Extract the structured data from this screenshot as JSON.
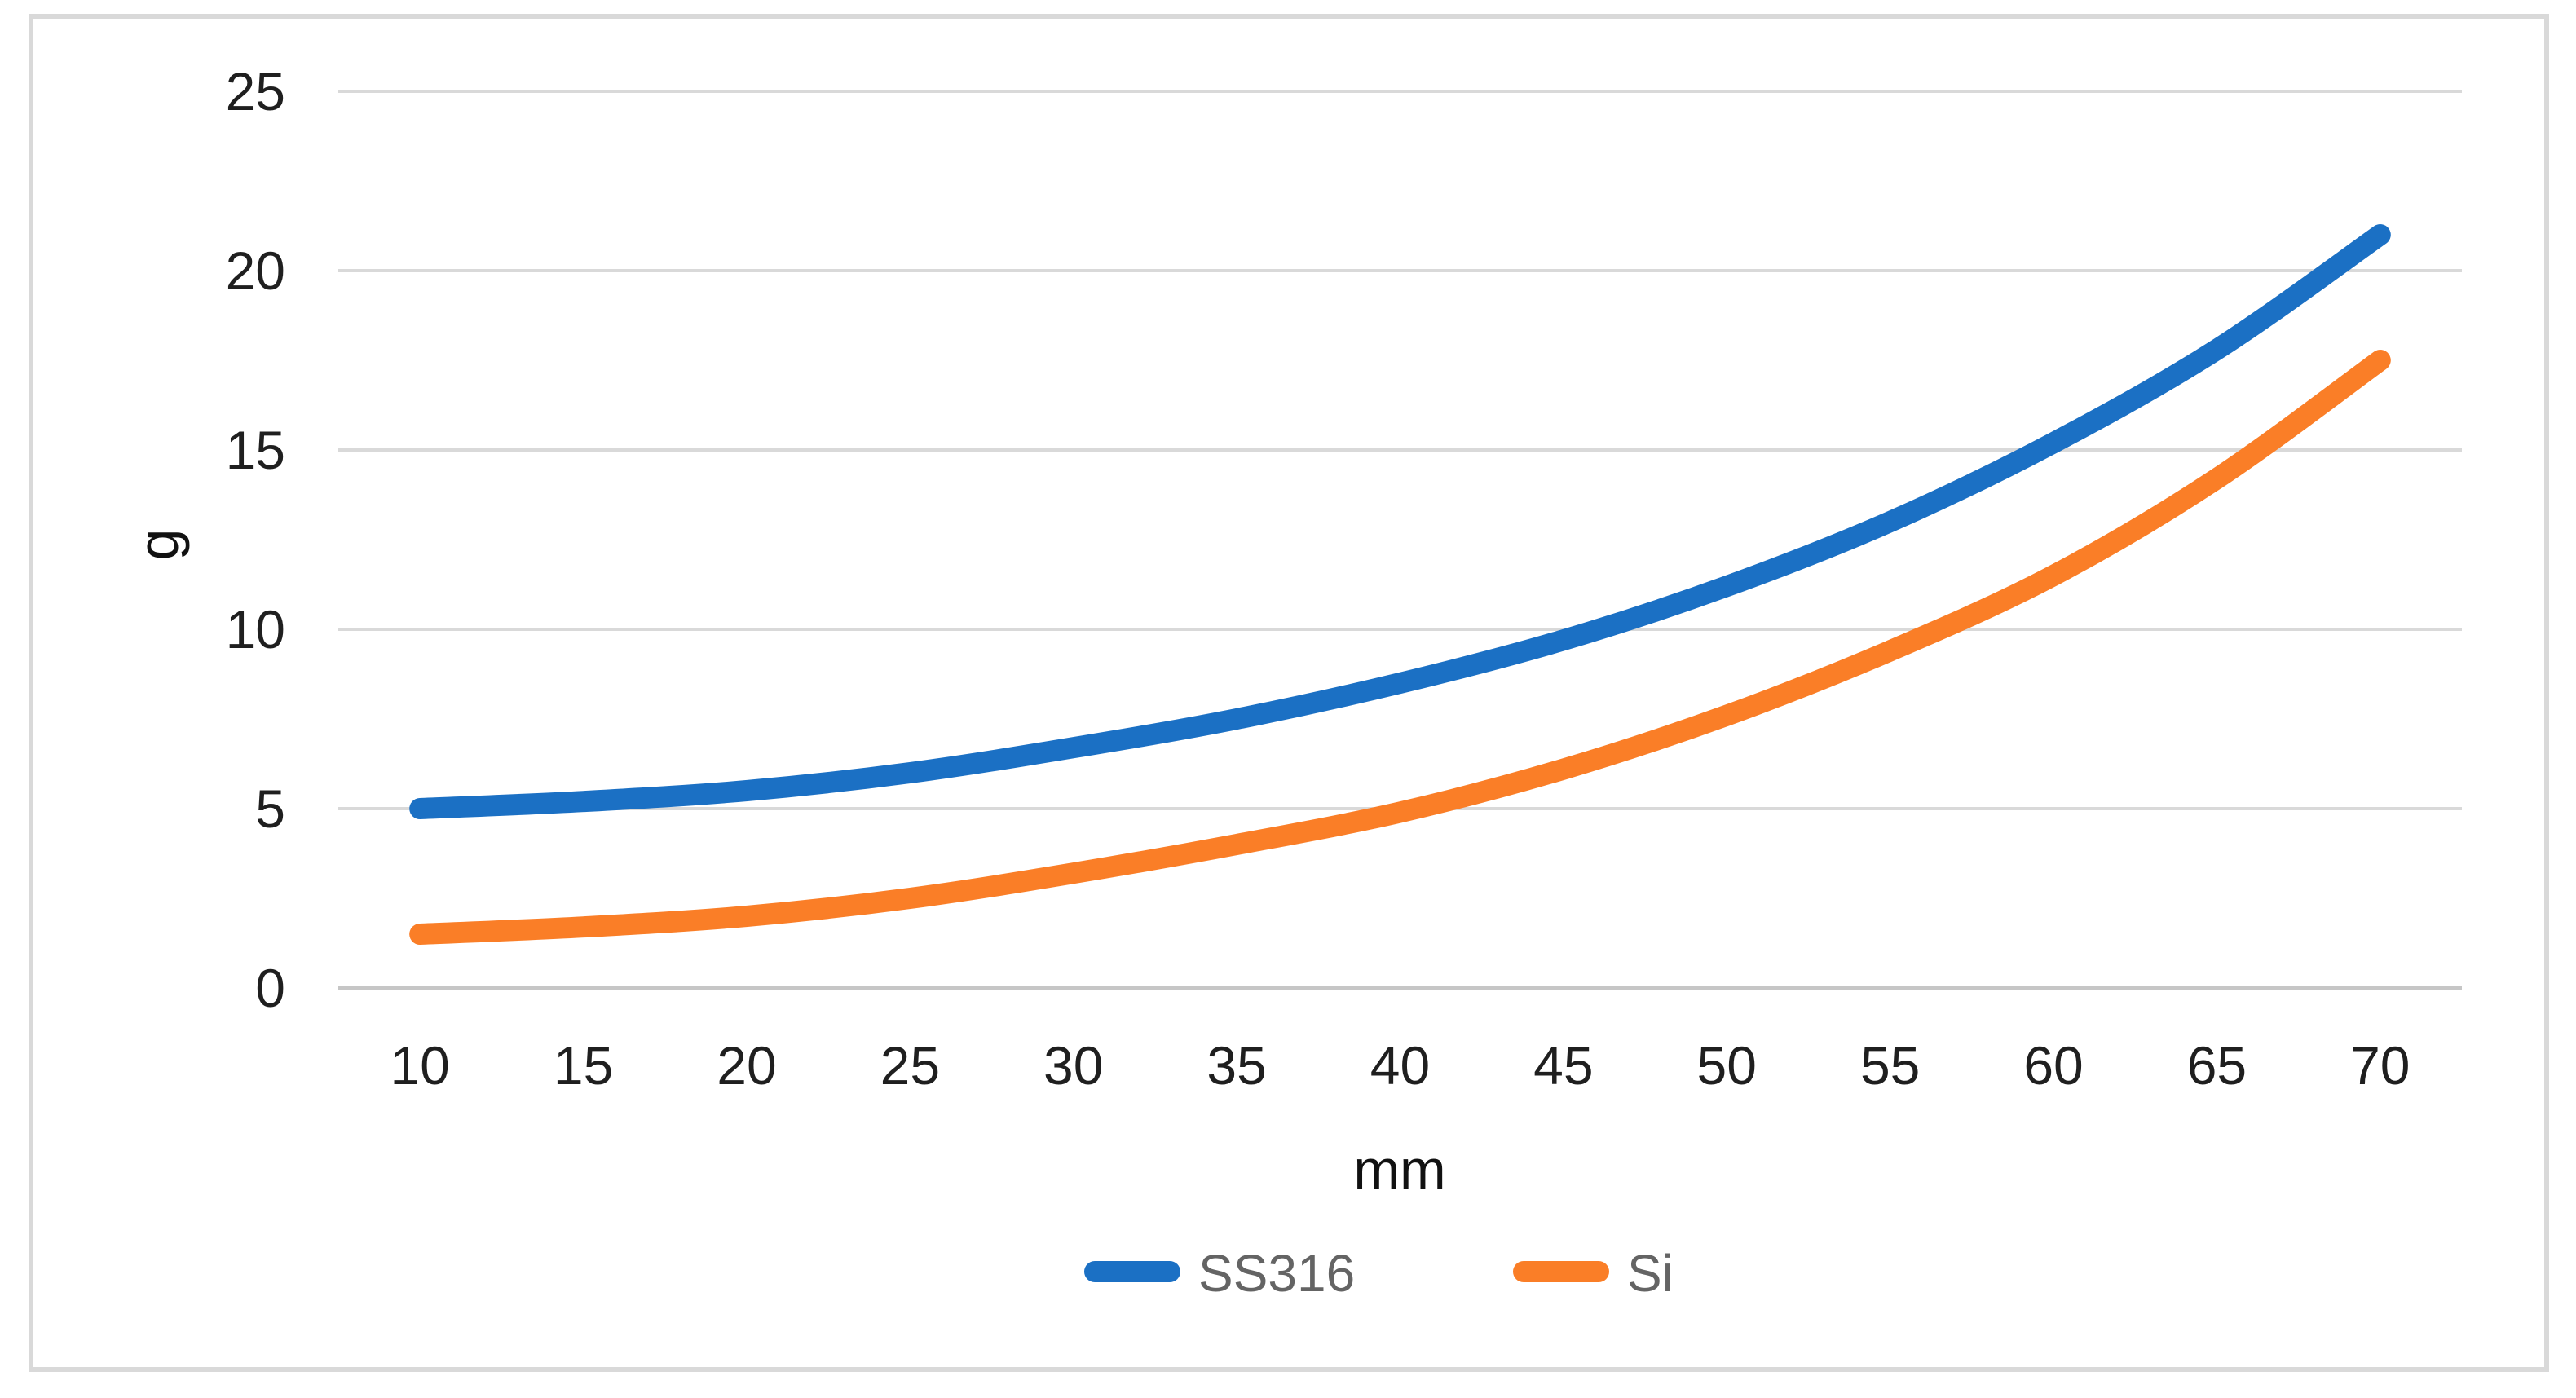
{
  "chart_data": {
    "type": "line",
    "title": "",
    "xlabel": "mm",
    "ylabel": "g",
    "categories": [
      10,
      15,
      20,
      25,
      30,
      35,
      40,
      45,
      50,
      55,
      60,
      65,
      70
    ],
    "series": [
      {
        "name": "SS316",
        "color": "#1B70C4",
        "values": [
          5.0,
          5.2,
          5.5,
          6.0,
          6.7,
          7.5,
          8.5,
          9.7,
          11.2,
          13.0,
          15.2,
          17.8,
          21.0
        ]
      },
      {
        "name": "Si",
        "color": "#FA7E27",
        "values": [
          1.5,
          1.7,
          2.0,
          2.5,
          3.2,
          4.0,
          4.9,
          6.1,
          7.6,
          9.4,
          11.5,
          14.2,
          17.5
        ]
      }
    ],
    "ylim": [
      0,
      25
    ],
    "ytick_step": 5,
    "yticks": [
      0,
      5,
      10,
      15,
      20,
      25
    ],
    "grid": "horizontal",
    "smooth_lines": true,
    "legend_position": "bottom"
  },
  "style": {
    "background": "#FFFFFF",
    "gridline_color": "#D9D9D9",
    "axis_line_color": "#C6C6C6",
    "border_color": "#D9D9D9",
    "tick_label_color": "#1F1F1F",
    "axis_title_color": "#111111",
    "legend_text_color": "#646464",
    "line_width": 26
  }
}
